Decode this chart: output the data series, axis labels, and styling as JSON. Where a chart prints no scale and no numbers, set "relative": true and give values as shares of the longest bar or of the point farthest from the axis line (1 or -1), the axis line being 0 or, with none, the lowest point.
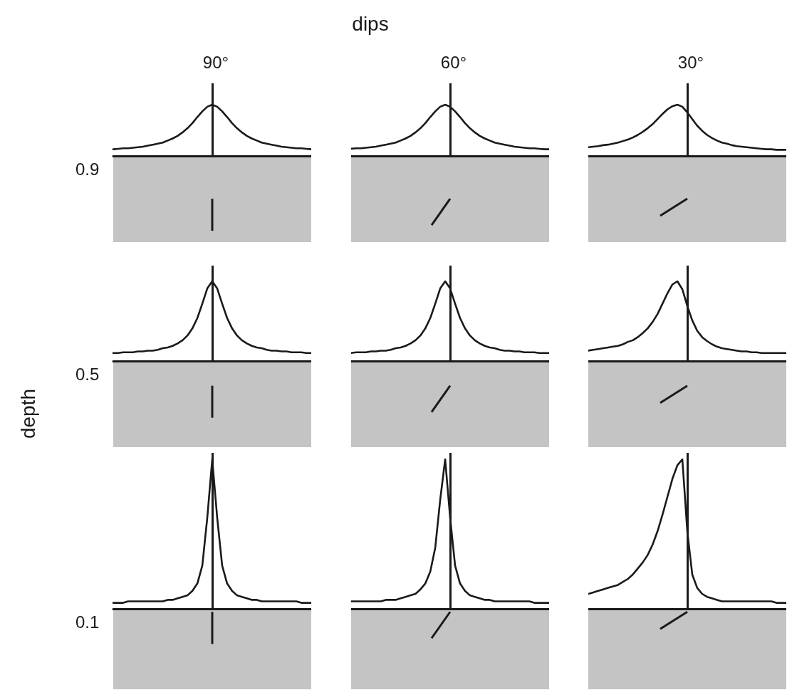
{
  "chart_data": [
    {
      "type": "line",
      "title": "90°",
      "ylabel": "0.9",
      "relative": true,
      "color": "#1a1a1a",
      "categories": [
        null,
        null,
        null,
        null,
        null,
        null,
        null,
        null,
        null,
        null,
        null,
        null,
        null,
        null,
        null,
        null,
        null,
        null,
        null,
        null,
        null,
        null,
        null,
        null,
        null,
        null,
        null,
        null,
        null,
        null,
        null,
        null,
        null,
        null,
        null,
        null,
        null,
        null,
        null,
        null,
        null
      ],
      "values": [
        0.13,
        0.14,
        0.15,
        0.15,
        0.16,
        0.17,
        0.18,
        0.2,
        0.22,
        0.24,
        0.26,
        0.3,
        0.34,
        0.39,
        0.46,
        0.54,
        0.64,
        0.76,
        0.87,
        0.96,
        1,
        0.96,
        0.87,
        0.76,
        0.64,
        0.54,
        0.46,
        0.39,
        0.34,
        0.3,
        0.26,
        0.24,
        0.22,
        0.2,
        0.18,
        0.17,
        0.16,
        0.15,
        0.15,
        0.14,
        0.13
      ]
    },
    {
      "type": "line",
      "title": "60°",
      "relative": true,
      "color": "#1a1a1a",
      "categories": [
        null,
        null,
        null,
        null,
        null,
        null,
        null,
        null,
        null,
        null,
        null,
        null,
        null,
        null,
        null,
        null,
        null,
        null,
        null,
        null,
        null,
        null,
        null,
        null,
        null,
        null,
        null,
        null,
        null,
        null,
        null,
        null,
        null,
        null,
        null,
        null,
        null,
        null,
        null,
        null,
        null
      ],
      "values": [
        0.14,
        0.15,
        0.15,
        0.16,
        0.17,
        0.18,
        0.2,
        0.22,
        0.24,
        0.26,
        0.3,
        0.34,
        0.39,
        0.46,
        0.54,
        0.64,
        0.76,
        0.87,
        0.96,
        1,
        0.96,
        0.87,
        0.76,
        0.64,
        0.54,
        0.46,
        0.39,
        0.34,
        0.3,
        0.26,
        0.24,
        0.22,
        0.2,
        0.18,
        0.17,
        0.16,
        0.15,
        0.15,
        0.14,
        0.13,
        0.13
      ]
    },
    {
      "type": "line",
      "title": "30°",
      "relative": true,
      "color": "#1a1a1a",
      "categories": [
        null,
        null,
        null,
        null,
        null,
        null,
        null,
        null,
        null,
        null,
        null,
        null,
        null,
        null,
        null,
        null,
        null,
        null,
        null,
        null,
        null,
        null,
        null,
        null,
        null,
        null,
        null,
        null,
        null,
        null,
        null,
        null,
        null,
        null,
        null,
        null,
        null,
        null,
        null,
        null,
        null
      ],
      "values": [
        0.17,
        0.18,
        0.19,
        0.21,
        0.22,
        0.24,
        0.26,
        0.29,
        0.32,
        0.36,
        0.41,
        0.47,
        0.54,
        0.62,
        0.72,
        0.82,
        0.91,
        0.97,
        1,
        0.96,
        0.85,
        0.72,
        0.59,
        0.49,
        0.41,
        0.35,
        0.3,
        0.26,
        0.24,
        0.21,
        0.19,
        0.18,
        0.17,
        0.16,
        0.15,
        0.14,
        0.13,
        0.13,
        0.12,
        0.12,
        0.12
      ]
    },
    {
      "type": "line",
      "ylabel": "0.5",
      "relative": true,
      "color": "#1a1a1a",
      "categories": [
        null,
        null,
        null,
        null,
        null,
        null,
        null,
        null,
        null,
        null,
        null,
        null,
        null,
        null,
        null,
        null,
        null,
        null,
        null,
        null,
        null,
        null,
        null,
        null,
        null,
        null,
        null,
        null,
        null,
        null,
        null,
        null,
        null,
        null,
        null,
        null,
        null,
        null,
        null,
        null,
        null
      ],
      "values": [
        0.1,
        0.1,
        0.11,
        0.11,
        0.11,
        0.12,
        0.12,
        0.13,
        0.13,
        0.14,
        0.16,
        0.17,
        0.19,
        0.22,
        0.26,
        0.32,
        0.41,
        0.54,
        0.72,
        0.91,
        1,
        0.91,
        0.72,
        0.54,
        0.41,
        0.32,
        0.26,
        0.22,
        0.19,
        0.17,
        0.16,
        0.14,
        0.13,
        0.13,
        0.12,
        0.12,
        0.11,
        0.11,
        0.11,
        0.1,
        0.1
      ]
    },
    {
      "type": "line",
      "relative": true,
      "color": "#1a1a1a",
      "categories": [
        null,
        null,
        null,
        null,
        null,
        null,
        null,
        null,
        null,
        null,
        null,
        null,
        null,
        null,
        null,
        null,
        null,
        null,
        null,
        null,
        null,
        null,
        null,
        null,
        null,
        null,
        null,
        null,
        null,
        null,
        null,
        null,
        null,
        null,
        null,
        null,
        null,
        null,
        null,
        null,
        null
      ],
      "values": [
        0.1,
        0.11,
        0.11,
        0.11,
        0.12,
        0.12,
        0.13,
        0.13,
        0.14,
        0.16,
        0.17,
        0.19,
        0.22,
        0.26,
        0.32,
        0.41,
        0.54,
        0.72,
        0.91,
        1,
        0.91,
        0.72,
        0.54,
        0.41,
        0.32,
        0.26,
        0.22,
        0.19,
        0.17,
        0.16,
        0.14,
        0.13,
        0.13,
        0.12,
        0.12,
        0.11,
        0.11,
        0.11,
        0.1,
        0.1,
        0.1
      ]
    },
    {
      "type": "line",
      "relative": true,
      "color": "#1a1a1a",
      "categories": [
        null,
        null,
        null,
        null,
        null,
        null,
        null,
        null,
        null,
        null,
        null,
        null,
        null,
        null,
        null,
        null,
        null,
        null,
        null,
        null,
        null,
        null,
        null,
        null,
        null,
        null,
        null,
        null,
        null,
        null,
        null,
        null,
        null,
        null,
        null,
        null,
        null,
        null,
        null,
        null,
        null
      ],
      "values": [
        0.13,
        0.14,
        0.15,
        0.16,
        0.17,
        0.18,
        0.19,
        0.21,
        0.24,
        0.26,
        0.3,
        0.35,
        0.41,
        0.49,
        0.59,
        0.72,
        0.85,
        0.96,
        1,
        0.9,
        0.69,
        0.51,
        0.38,
        0.3,
        0.25,
        0.21,
        0.18,
        0.16,
        0.15,
        0.14,
        0.13,
        0.12,
        0.12,
        0.11,
        0.11,
        0.1,
        0.1,
        0.1,
        0.1,
        0.1,
        0.1
      ]
    },
    {
      "type": "line",
      "ylabel": "0.1",
      "relative": true,
      "color": "#1a1a1a",
      "categories": [
        null,
        null,
        null,
        null,
        null,
        null,
        null,
        null,
        null,
        null,
        null,
        null,
        null,
        null,
        null,
        null,
        null,
        null,
        null,
        null,
        null,
        null,
        null,
        null,
        null,
        null,
        null,
        null,
        null,
        null,
        null,
        null,
        null,
        null,
        null,
        null,
        null,
        null,
        null,
        null,
        null
      ],
      "values": [
        0.04,
        0.04,
        0.04,
        0.05,
        0.05,
        0.05,
        0.05,
        0.05,
        0.05,
        0.05,
        0.05,
        0.06,
        0.06,
        0.07,
        0.08,
        0.09,
        0.12,
        0.17,
        0.29,
        0.61,
        1,
        0.61,
        0.29,
        0.17,
        0.12,
        0.09,
        0.08,
        0.07,
        0.06,
        0.06,
        0.05,
        0.05,
        0.05,
        0.05,
        0.05,
        0.05,
        0.05,
        0.05,
        0.04,
        0.04,
        0.04
      ]
    },
    {
      "type": "line",
      "relative": true,
      "color": "#1a1a1a",
      "categories": [
        null,
        null,
        null,
        null,
        null,
        null,
        null,
        null,
        null,
        null,
        null,
        null,
        null,
        null,
        null,
        null,
        null,
        null,
        null,
        null,
        null,
        null,
        null,
        null,
        null,
        null,
        null,
        null,
        null,
        null,
        null,
        null,
        null,
        null,
        null,
        null,
        null,
        null,
        null,
        null,
        null
      ],
      "values": [
        0.05,
        0.05,
        0.05,
        0.05,
        0.05,
        0.05,
        0.05,
        0.06,
        0.06,
        0.06,
        0.07,
        0.08,
        0.09,
        0.1,
        0.13,
        0.17,
        0.25,
        0.41,
        0.73,
        1,
        0.61,
        0.29,
        0.17,
        0.12,
        0.09,
        0.08,
        0.07,
        0.06,
        0.06,
        0.05,
        0.05,
        0.05,
        0.05,
        0.05,
        0.05,
        0.05,
        0.05,
        0.04,
        0.04,
        0.04,
        0.04
      ]
    },
    {
      "type": "line",
      "relative": true,
      "color": "#1a1a1a",
      "categories": [
        null,
        null,
        null,
        null,
        null,
        null,
        null,
        null,
        null,
        null,
        null,
        null,
        null,
        null,
        null,
        null,
        null,
        null,
        null,
        null,
        null,
        null,
        null,
        null,
        null,
        null,
        null,
        null,
        null,
        null,
        null,
        null,
        null,
        null,
        null,
        null,
        null,
        null,
        null,
        null,
        null
      ],
      "values": [
        0.1,
        0.11,
        0.12,
        0.13,
        0.14,
        0.15,
        0.16,
        0.18,
        0.2,
        0.23,
        0.27,
        0.31,
        0.36,
        0.43,
        0.52,
        0.63,
        0.75,
        0.87,
        0.96,
        1,
        0.52,
        0.23,
        0.14,
        0.1,
        0.08,
        0.07,
        0.06,
        0.05,
        0.05,
        0.05,
        0.05,
        0.05,
        0.05,
        0.05,
        0.05,
        0.05,
        0.05,
        0.05,
        0.04,
        0.04,
        0.04
      ]
    },
    {
      "type": "other",
      "title": "dips",
      "ylabel": "depth"
    }
  ]
}
